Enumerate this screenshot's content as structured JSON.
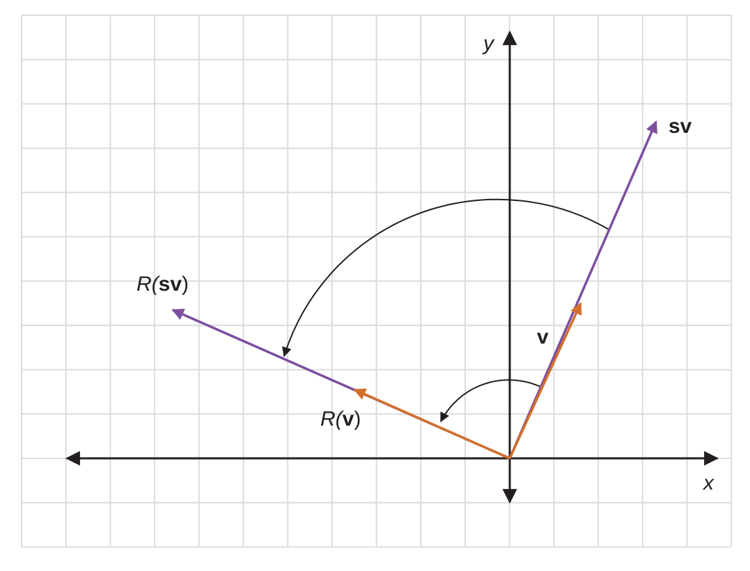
{
  "diagram": {
    "axes": {
      "x_label": "x",
      "y_label": "y"
    },
    "vectors": {
      "v": {
        "label": "v",
        "tip": [
          1.6,
          3.5
        ],
        "color": "#d2702c"
      },
      "sv": {
        "label": "sv",
        "tip": [
          3.3,
          7.6
        ],
        "color": "#7d4e9f"
      },
      "R_v": {
        "label_prefix": "R(",
        "label_core": "v",
        "label_suffix": ")",
        "tip": [
          -3.5,
          1.55
        ],
        "color": "#d2702c"
      },
      "R_sv": {
        "label_prefix": "R(",
        "label_core": "sv",
        "label_suffix": ")",
        "tip": [
          -7.6,
          3.35
        ],
        "color": "#7d4e9f"
      }
    },
    "colors": {
      "grid": "#dcdcdc",
      "axes": "#231f20",
      "arc": "#231f20"
    }
  }
}
